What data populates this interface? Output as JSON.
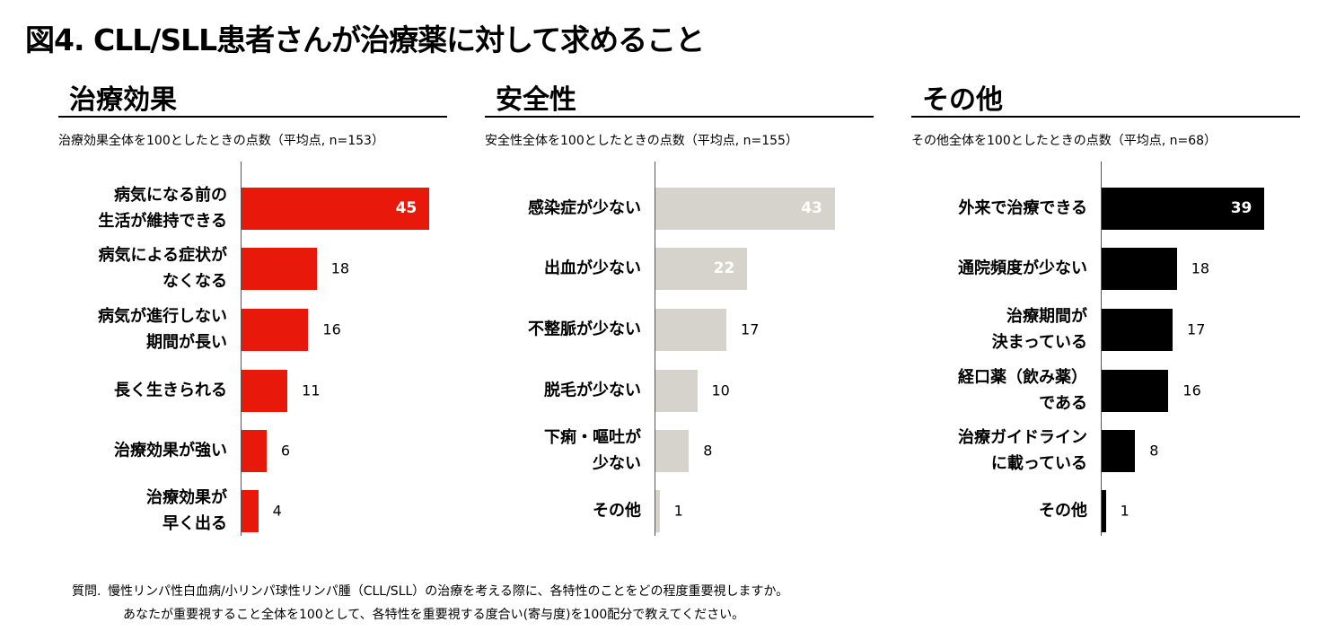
{
  "title": "図4. CLL/SLL患者さんが治療薬に対して求めること",
  "chart_data": [
    {
      "type": "hbar",
      "title": "治療効果",
      "subtitle": "治療効果全体を100としたときの点数（平均点, n=153）",
      "color": "#e8190a",
      "categories": [
        "病気になる前の\n生活が維持できる",
        "病気による症状が\nなくなる",
        "病気が進行しない\n期間が長い",
        "長く生きられる",
        "治療効果が強い",
        "治療効果が\n早く出る"
      ],
      "values": [
        45,
        18,
        16,
        11,
        6,
        4
      ]
    },
    {
      "type": "hbar",
      "title": "安全性",
      "subtitle": "安全性全体を100としたときの点数（平均点, n=155）",
      "color": "#d6d2cc",
      "categories": [
        "感染症が少ない",
        "出血が少ない",
        "不整脈が少ない",
        "脱毛が少ない",
        "下痢・嘔吐が\n少ない",
        "その他"
      ],
      "values": [
        43,
        22,
        17,
        10,
        8,
        1
      ]
    },
    {
      "type": "hbar",
      "title": "その他",
      "subtitle": "その他全体を100としたときの点数（平均点, n=68）",
      "color": "#000000",
      "categories": [
        "外来で治療できる",
        "通院頻度が少ない",
        "治療期間が\n決まっている",
        "経口薬（飲み薬）\nである",
        "治療ガイドライン\nに載っている",
        "その他"
      ],
      "values": [
        39,
        18,
        17,
        16,
        8,
        1
      ]
    }
  ],
  "footnote": {
    "label": "質問.",
    "lines": [
      "慢性リンパ性白血病/小リンパ球性リンパ腫（CLL/SLL）の治療を考える際に、各特性のことをどの程度重要視しますか。",
      "あなたが重要視すること全体を100として、各特性を重要視する度合い(寄与度)を100配分で教えてください。"
    ]
  }
}
